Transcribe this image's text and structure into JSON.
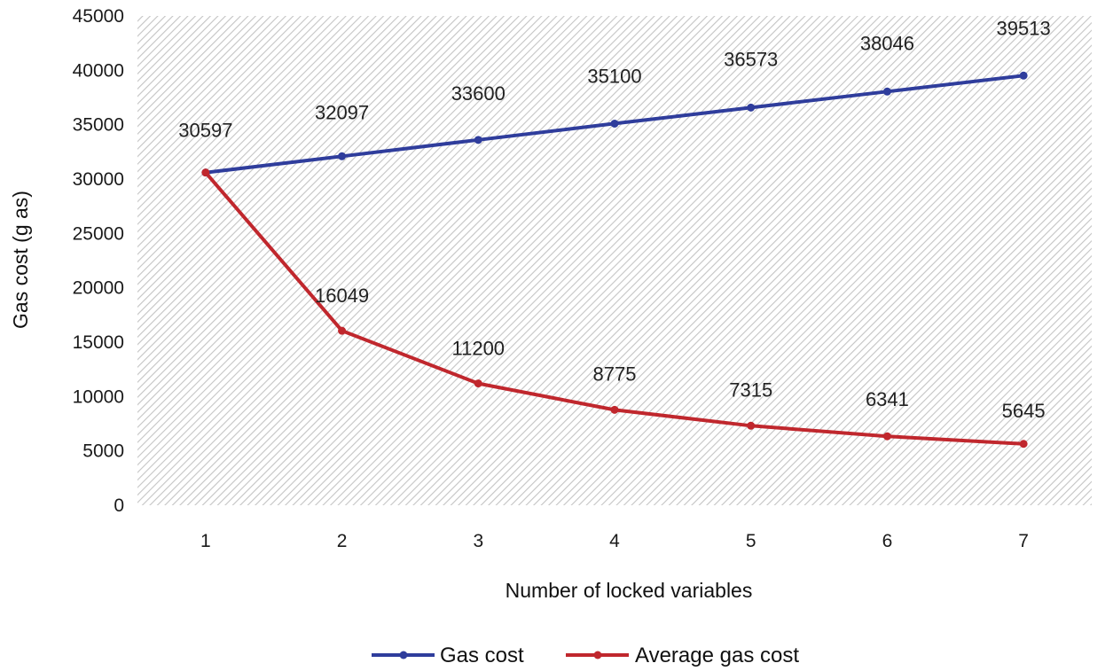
{
  "chart_data": {
    "type": "line",
    "title": "",
    "xlabel": "Number of locked variables",
    "ylabel": "Gas cost (g as)",
    "categories": [
      "1",
      "2",
      "3",
      "4",
      "5",
      "6",
      "7"
    ],
    "x": [
      1,
      2,
      3,
      4,
      5,
      6,
      7
    ],
    "ylim": [
      0,
      45000
    ],
    "yticks": [
      0,
      5000,
      10000,
      15000,
      20000,
      25000,
      30000,
      35000,
      40000,
      45000
    ],
    "grid": false,
    "legend_position": "bottom",
    "series": [
      {
        "name": "Gas cost",
        "color": "#2f3d9c",
        "values": [
          30597,
          32097,
          33600,
          35100,
          36573,
          38046,
          39513
        ],
        "labels": [
          "30597",
          "32097",
          "33600",
          "35100",
          "36573",
          "38046",
          "39513"
        ]
      },
      {
        "name": "Average gas cost",
        "color": "#c0272d",
        "values": [
          30597,
          16049,
          11200,
          8775,
          7315,
          6341,
          5645
        ],
        "labels": [
          "30597",
          "16049",
          "11200",
          "8775",
          "7315",
          "6341",
          "5645"
        ]
      }
    ]
  }
}
